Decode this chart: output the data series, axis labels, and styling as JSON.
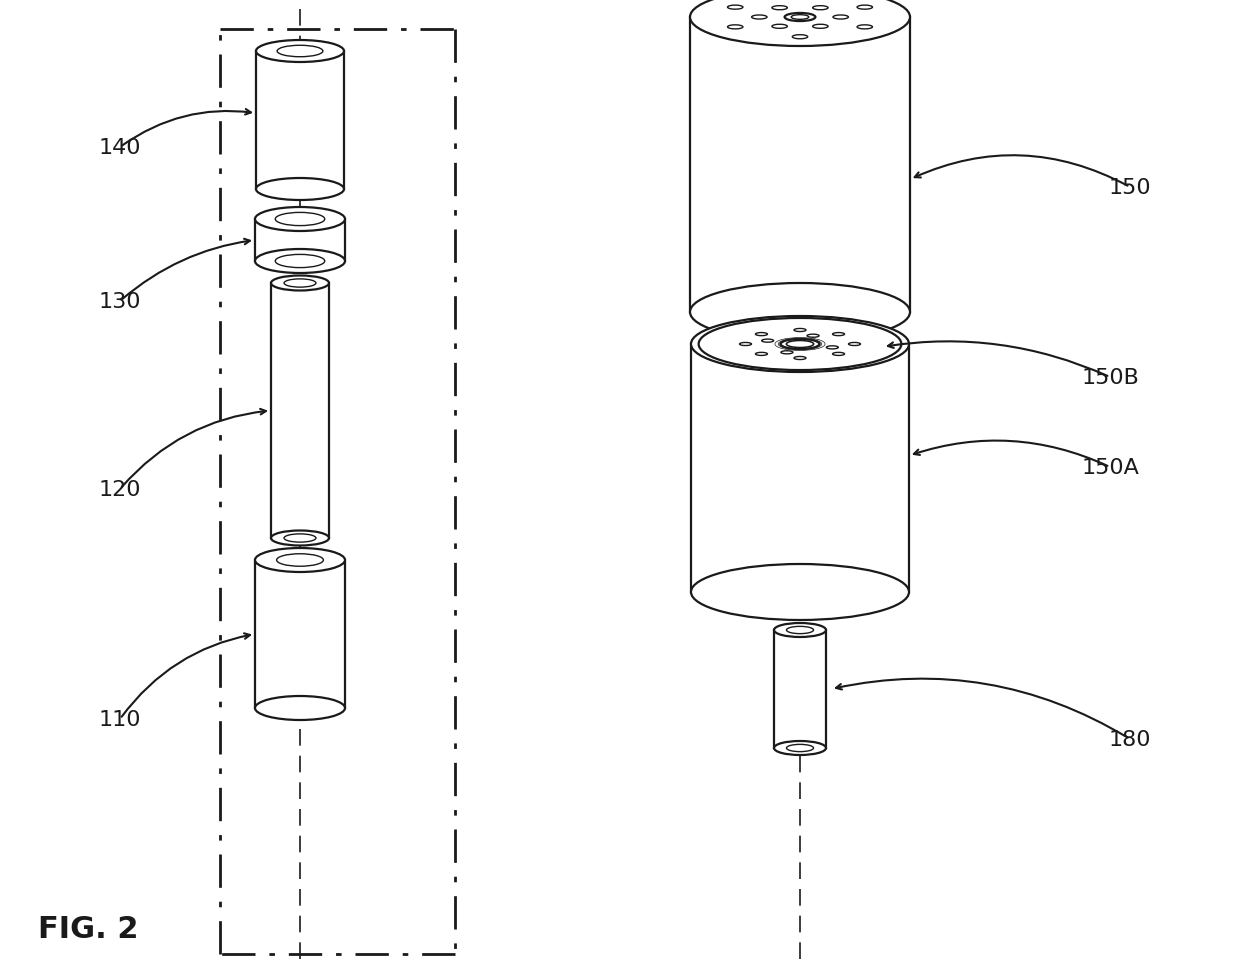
{
  "bg_color": "#ffffff",
  "line_color": "#1a1a1a",
  "fig_label": "FIG. 2",
  "fig_label_fontsize": 22,
  "annotation_fontsize": 16,
  "lw": 1.6,
  "lw_thin": 1.0
}
